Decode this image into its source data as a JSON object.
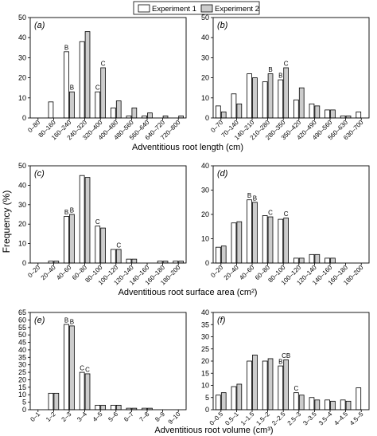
{
  "legend": {
    "position": "top-center",
    "entries": [
      {
        "label": "Experiment 1",
        "color": "#ffffff"
      },
      {
        "label": "Experiment 2",
        "color": "#cccccc"
      }
    ]
  },
  "shared_ylabel": "Frequency (%)",
  "chart_data": [
    {
      "type": "bar",
      "panel": "(a)",
      "xlabel": "Adventitious root length (cm)",
      "ylim": [
        0,
        50
      ],
      "yticks": [
        0,
        10,
        20,
        30,
        40,
        50
      ],
      "categories": [
        "0–80",
        "80–160",
        "160–240",
        "240–320",
        "320–400",
        "400–480",
        "480–560",
        "560–640",
        "640–720",
        "720–800"
      ],
      "series": [
        {
          "name": "Experiment 1",
          "values": [
            0,
            8,
            33,
            38,
            13,
            5,
            1,
            1,
            0,
            0
          ]
        },
        {
          "name": "Experiment 2",
          "values": [
            0,
            0,
            13,
            43,
            25,
            8.5,
            5,
            2.5,
            1,
            1
          ]
        }
      ],
      "annotations": [
        {
          "category": "160–240",
          "series": "Experiment 1",
          "text": "B"
        },
        {
          "category": "160–240",
          "series": "Experiment 2",
          "text": "B"
        },
        {
          "category": "320–400",
          "series": "Experiment 1",
          "text": "C"
        },
        {
          "category": "320–400",
          "series": "Experiment 2",
          "text": "C"
        }
      ]
    },
    {
      "type": "bar",
      "panel": "(b)",
      "xlabel": "",
      "ylim": [
        0,
        50
      ],
      "yticks": [
        0,
        10,
        20,
        30,
        40,
        50
      ],
      "categories": [
        "0–70",
        "70–140",
        "140–210",
        "210–280",
        "280–350",
        "350–420",
        "420–490",
        "490–560",
        "560–630",
        "630–700"
      ],
      "series": [
        {
          "name": "Experiment 1",
          "values": [
            6,
            12,
            22,
            18,
            19,
            9,
            7,
            4,
            1,
            3
          ]
        },
        {
          "name": "Experiment 2",
          "values": [
            3,
            7,
            20,
            22,
            25,
            15,
            6,
            4,
            1,
            0
          ]
        }
      ],
      "annotations": [
        {
          "category": "210–280",
          "series": "Experiment 2",
          "text": "B"
        },
        {
          "category": "280–350",
          "series": "Experiment 1",
          "text": "B"
        },
        {
          "category": "280–350",
          "series": "Experiment 2",
          "text": "C"
        }
      ]
    },
    {
      "type": "bar",
      "panel": "(c)",
      "xlabel": "Adventitious  root surface area (cm²)",
      "ylim": [
        0,
        50
      ],
      "yticks": [
        0,
        10,
        20,
        30,
        40,
        50
      ],
      "categories": [
        "0–20",
        "20–40",
        "40–60",
        "60–80",
        "80–100",
        "100–120",
        "120–140",
        "140–160",
        "160–180",
        "180–200"
      ],
      "series": [
        {
          "name": "Experiment 1",
          "values": [
            0,
            1,
            24,
            45,
            19,
            7,
            2,
            0,
            1,
            1
          ]
        },
        {
          "name": "Experiment 2",
          "values": [
            0,
            1,
            25,
            44,
            18,
            7,
            2,
            0,
            1,
            1
          ]
        }
      ],
      "annotations": [
        {
          "category": "40–60",
          "series": "Experiment 1",
          "text": "B"
        },
        {
          "category": "40–60",
          "series": "Experiment 2",
          "text": "B"
        },
        {
          "category": "80–100",
          "series": "Experiment 1",
          "text": "C"
        },
        {
          "category": "100–120",
          "series": "Experiment 2",
          "text": "C"
        }
      ]
    },
    {
      "type": "bar",
      "panel": "(d)",
      "xlabel": "",
      "ylim": [
        0,
        40
      ],
      "yticks": [
        0,
        10,
        20,
        30,
        40
      ],
      "categories": [
        "0–20",
        "20–40",
        "40–60",
        "60–80",
        "80–100",
        "100–120",
        "120–140",
        "140–160",
        "160–180",
        "180–200"
      ],
      "series": [
        {
          "name": "Experiment 1",
          "values": [
            6.5,
            16.5,
            26,
            19.5,
            18,
            2,
            3.5,
            2,
            0,
            0
          ]
        },
        {
          "name": "Experiment 2",
          "values": [
            7,
            17,
            25,
            19,
            18.5,
            2,
            3.5,
            2,
            0,
            0
          ]
        }
      ],
      "annotations": [
        {
          "category": "40–60",
          "series": "Experiment 1",
          "text": "B"
        },
        {
          "category": "40–60",
          "series": "Experiment 2",
          "text": "B"
        },
        {
          "category": "60–80",
          "series": "Experiment 2",
          "text": "C"
        },
        {
          "category": "80–100",
          "series": "Experiment 2",
          "text": "C"
        }
      ]
    },
    {
      "type": "bar",
      "panel": "(e)",
      "xlabel": "Adventitious  root volume (cm³)",
      "ylim": [
        0,
        65
      ],
      "yticks": [
        0,
        5,
        10,
        15,
        20,
        25,
        30,
        35,
        40,
        45,
        50,
        55,
        60,
        65
      ],
      "categories": [
        "0–1",
        "1–2",
        "2–3",
        "3–4",
        "4–5",
        "5–6",
        "6–7",
        "7–8",
        "8–9",
        "9–10"
      ],
      "series": [
        {
          "name": "Experiment 1",
          "values": [
            0,
            11,
            57,
            25,
            3,
            3,
            1,
            1,
            0,
            0
          ]
        },
        {
          "name": "Experiment 2",
          "values": [
            0,
            11,
            56,
            24,
            3,
            3,
            1,
            1,
            0,
            0
          ]
        }
      ],
      "annotations": [
        {
          "category": "2–3",
          "series": "Experiment 1",
          "text": "B"
        },
        {
          "category": "2–3",
          "series": "Experiment 2",
          "text": "B"
        },
        {
          "category": "3–4",
          "series": "Experiment 1",
          "text": "C"
        },
        {
          "category": "3–4",
          "series": "Experiment 2",
          "text": "C"
        }
      ]
    },
    {
      "type": "bar",
      "panel": "(f)",
      "xlabel": "",
      "ylim": [
        0,
        40
      ],
      "yticks": [
        0,
        5,
        10,
        15,
        20,
        25,
        30,
        35,
        40
      ],
      "categories": [
        "0–0.5",
        "0.5–1",
        "1–1.5",
        "1.5–2",
        "2–2.5",
        "2.5–3",
        "3–3.5",
        "3.5–4",
        "4–4.5",
        "4.5–5"
      ],
      "series": [
        {
          "name": "Experiment 1",
          "values": [
            6,
            9.5,
            20,
            20,
            18,
            7,
            5,
            4,
            4,
            9
          ]
        },
        {
          "name": "Experiment 2",
          "values": [
            7,
            10.5,
            22.5,
            21,
            20.5,
            6,
            4,
            3.5,
            3.5,
            0
          ]
        }
      ],
      "annotations": [
        {
          "category": "2–2.5",
          "series": "Experiment 1",
          "text": "B"
        },
        {
          "category": "2–2.5",
          "series": "Experiment 2",
          "text": "CB"
        },
        {
          "category": "2.5–3",
          "series": "Experiment 1",
          "text": "C"
        }
      ]
    }
  ]
}
